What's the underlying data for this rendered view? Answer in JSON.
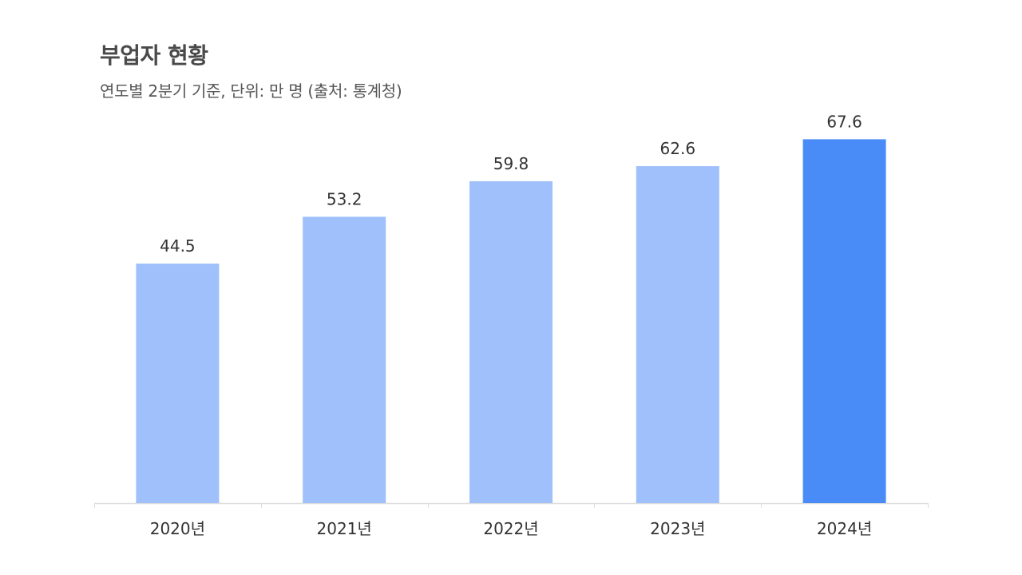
{
  "title": "부업자 현황",
  "subtitle": "연도별 2분기 기준, 단위: 만 명 (출처: 통계청)",
  "colors": {
    "bar": "#9fc0fb",
    "highlight": "#4a8cf7",
    "axis": "#dddddd",
    "label": "#333333"
  },
  "chart_data": {
    "type": "bar",
    "categories": [
      "2020년",
      "2021년",
      "2022년",
      "2023년",
      "2024년"
    ],
    "values": [
      44.5,
      53.2,
      59.8,
      62.6,
      67.6
    ],
    "highlight_index": 4,
    "title": "부업자 현황",
    "xlabel": "",
    "ylabel": "",
    "grid": false,
    "legend": "none"
  }
}
